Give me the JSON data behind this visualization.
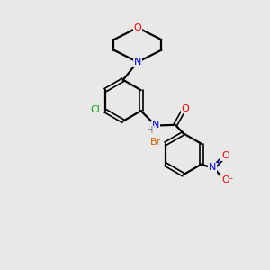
{
  "background_color": "#e8e8e8",
  "bond_color": "#000000",
  "atom_colors": {
    "O": "#ff0000",
    "N": "#0000ff",
    "Cl": "#00aa00",
    "Br": "#cc6600",
    "C": "#000000",
    "H": "#777777"
  },
  "figsize": [
    3.0,
    3.0
  ],
  "dpi": 100
}
